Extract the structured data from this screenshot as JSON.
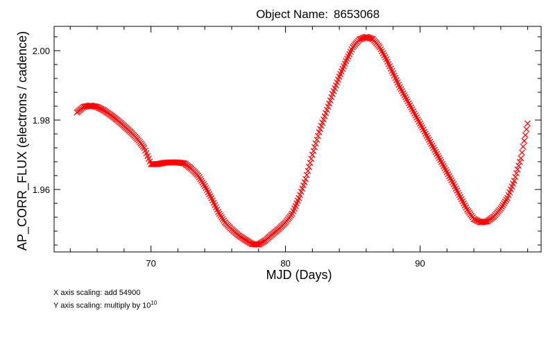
{
  "chart_data": {
    "type": "scatter",
    "title_label": "Object Name:",
    "title_value": "8653068",
    "xlabel": "MJD (Days)",
    "ylabel": "AP_CORR_FLUX (electrons / cadence)",
    "xlim": [
      62.8,
      99.0
    ],
    "ylim": [
      1.942,
      2.007
    ],
    "xticks": [
      70,
      80,
      90
    ],
    "yticks": [
      1.96,
      1.98,
      2.0
    ],
    "xtick_labels": [
      "70",
      "80",
      "90"
    ],
    "ytick_labels": [
      "1.96",
      "1.98",
      "2.00"
    ],
    "marker": "x",
    "marker_color": "#ff0000",
    "grid": false,
    "series": [
      {
        "points": [
          [
            64.5,
            1.9822
          ],
          [
            65.0,
            1.9838
          ],
          [
            65.5,
            1.9842
          ],
          [
            66.0,
            1.9838
          ],
          [
            66.5,
            1.9828
          ],
          [
            67.0,
            1.9815
          ],
          [
            67.5,
            1.98
          ],
          [
            68.0,
            1.9783
          ],
          [
            68.5,
            1.9765
          ],
          [
            69.0,
            1.9745
          ],
          [
            69.5,
            1.972
          ],
          [
            70.0,
            1.9673
          ],
          [
            70.5,
            1.9673
          ],
          [
            71.0,
            1.9677
          ],
          [
            71.5,
            1.9678
          ],
          [
            72.0,
            1.9678
          ],
          [
            72.5,
            1.9675
          ],
          [
            73.0,
            1.966
          ],
          [
            73.5,
            1.964
          ],
          [
            74.0,
            1.961
          ],
          [
            74.5,
            1.9575
          ],
          [
            75.0,
            1.9535
          ],
          [
            75.5,
            1.9505
          ],
          [
            76.0,
            1.9485
          ],
          [
            76.5,
            1.9468
          ],
          [
            77.0,
            1.9455
          ],
          [
            77.5,
            1.9443
          ],
          [
            78.0,
            1.9441
          ],
          [
            78.5,
            1.9453
          ],
          [
            79.0,
            1.947
          ],
          [
            79.5,
            1.9486
          ],
          [
            80.0,
            1.9505
          ],
          [
            80.5,
            1.953
          ],
          [
            81.0,
            1.9575
          ],
          [
            81.5,
            1.963
          ],
          [
            82.0,
            1.97
          ],
          [
            82.5,
            1.9765
          ],
          [
            83.0,
            1.982
          ],
          [
            83.5,
            1.9875
          ],
          [
            84.0,
            1.9925
          ],
          [
            84.5,
            1.997
          ],
          [
            85.0,
            2.001
          ],
          [
            85.5,
            2.0032
          ],
          [
            86.0,
            2.004
          ],
          [
            86.5,
            2.0033
          ],
          [
            87.0,
            2.001
          ],
          [
            87.5,
            1.9975
          ],
          [
            88.0,
            1.9935
          ],
          [
            88.5,
            1.9895
          ],
          [
            89.0,
            1.986
          ],
          [
            89.5,
            1.9825
          ],
          [
            90.0,
            1.979
          ],
          [
            90.5,
            1.9755
          ],
          [
            91.0,
            1.972
          ],
          [
            91.5,
            1.9685
          ],
          [
            92.0,
            1.965
          ],
          [
            92.5,
            1.9615
          ],
          [
            93.0,
            1.9578
          ],
          [
            93.5,
            1.9542
          ],
          [
            94.0,
            1.9515
          ],
          [
            94.5,
            1.9505
          ],
          [
            95.0,
            1.9508
          ],
          [
            95.5,
            1.9522
          ],
          [
            96.0,
            1.9545
          ],
          [
            96.5,
            1.9575
          ],
          [
            97.0,
            1.9625
          ],
          [
            97.5,
            1.969
          ],
          [
            98.0,
            1.979
          ]
        ]
      }
    ]
  },
  "notes": {
    "x_scaling": "X axis scaling: add 54900",
    "y_scaling_prefix": "Y axis scaling: multiply by 10",
    "y_scaling_exp": "10"
  }
}
